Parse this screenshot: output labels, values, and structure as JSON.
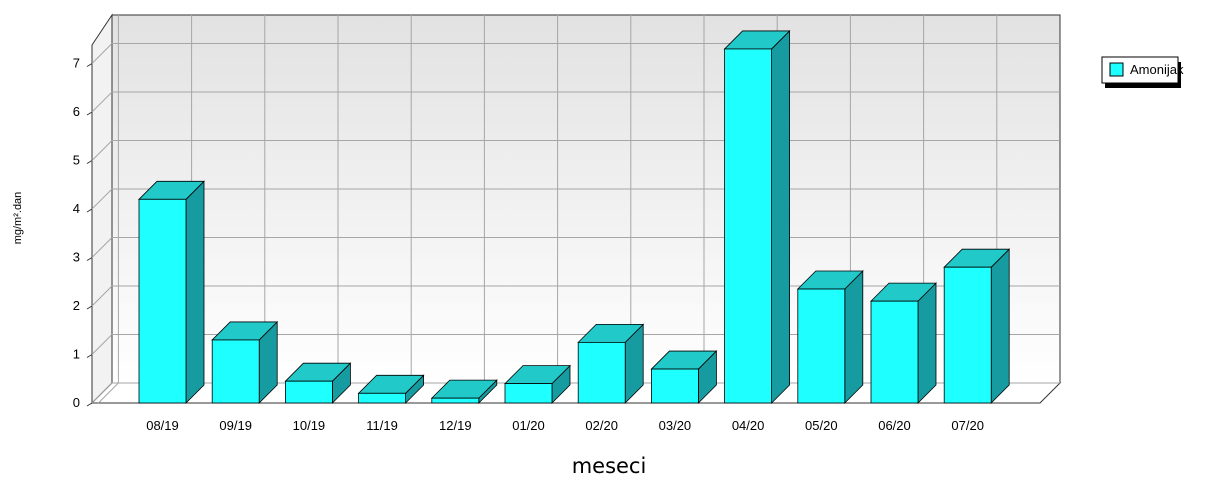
{
  "chart_data": {
    "type": "bar",
    "style": "3d",
    "categories": [
      "08/19",
      "09/19",
      "10/19",
      "11/19",
      "12/19",
      "01/20",
      "02/20",
      "03/20",
      "04/20",
      "05/20",
      "06/20",
      "07/20"
    ],
    "series": [
      {
        "name": "Amonijak",
        "values": [
          4.2,
          1.3,
          0.45,
          0.2,
          0.1,
          0.4,
          1.25,
          0.7,
          7.3,
          2.35,
          2.1,
          2.8
        ],
        "color": "#1effff"
      }
    ],
    "title": "",
    "xlabel": "meseci",
    "ylabel": "mg/m².dan",
    "ylim": [
      0,
      7.5
    ],
    "yticks": [
      0,
      1,
      2,
      3,
      4,
      5,
      6,
      7
    ],
    "grid": true,
    "legend": "top-right"
  }
}
